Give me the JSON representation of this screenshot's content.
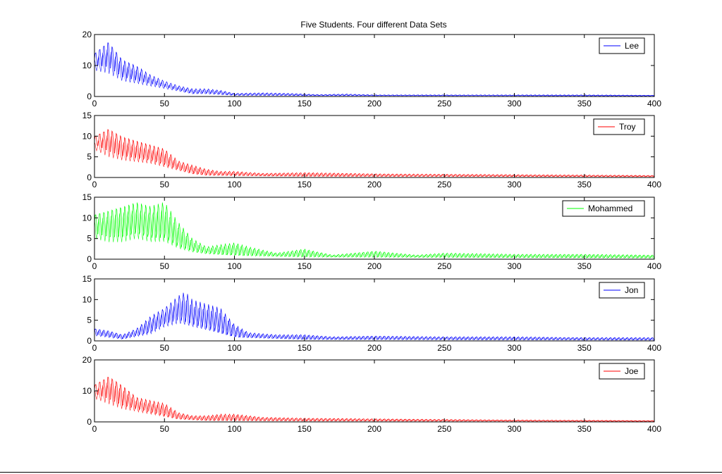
{
  "chart_data": {
    "type": "line",
    "title": "Five Students.  Four different Data Sets",
    "grid": false,
    "panels": [
      {
        "name": "Lee",
        "color": "#0000ff",
        "xlim": [
          0,
          400
        ],
        "ylim": [
          0,
          20
        ],
        "xticks": [
          0,
          50,
          100,
          150,
          200,
          250,
          300,
          350,
          400
        ],
        "yticks": [
          0,
          10,
          20
        ],
        "legend": "top-right",
        "envelope": [
          [
            0,
            14
          ],
          [
            10,
            18
          ],
          [
            20,
            12
          ],
          [
            30,
            10
          ],
          [
            40,
            7
          ],
          [
            50,
            5
          ],
          [
            60,
            3.5
          ],
          [
            70,
            2.5
          ],
          [
            80,
            2.5
          ],
          [
            90,
            2
          ],
          [
            100,
            1
          ],
          [
            120,
            1.2
          ],
          [
            140,
            1
          ],
          [
            160,
            0.6
          ],
          [
            180,
            0.8
          ],
          [
            200,
            0.5
          ],
          [
            250,
            0.5
          ],
          [
            300,
            0.5
          ],
          [
            350,
            0.5
          ],
          [
            400,
            0.4
          ]
        ],
        "baseline": [
          [
            0,
            10
          ],
          [
            10,
            9
          ],
          [
            20,
            6
          ],
          [
            30,
            5
          ],
          [
            40,
            4
          ],
          [
            50,
            3
          ],
          [
            60,
            2
          ],
          [
            70,
            1
          ],
          [
            80,
            1
          ],
          [
            100,
            0.4
          ],
          [
            150,
            0.3
          ],
          [
            400,
            0.2
          ]
        ]
      },
      {
        "name": "Troy",
        "color": "#ff0000",
        "xlim": [
          0,
          400
        ],
        "ylim": [
          0,
          15
        ],
        "xticks": [
          0,
          50,
          100,
          150,
          200,
          250,
          300,
          350,
          400
        ],
        "yticks": [
          0,
          5,
          10,
          15
        ],
        "legend": "top-right",
        "envelope": [
          [
            0,
            10
          ],
          [
            10,
            12
          ],
          [
            20,
            10
          ],
          [
            30,
            9
          ],
          [
            40,
            8
          ],
          [
            50,
            7
          ],
          [
            60,
            4
          ],
          [
            70,
            3
          ],
          [
            80,
            2
          ],
          [
            90,
            1.5
          ],
          [
            100,
            1.5
          ],
          [
            120,
            1
          ],
          [
            150,
            1.2
          ],
          [
            200,
            0.9
          ],
          [
            250,
            0.8
          ],
          [
            300,
            0.7
          ],
          [
            350,
            0.6
          ],
          [
            400,
            0.5
          ]
        ],
        "baseline": [
          [
            0,
            8
          ],
          [
            10,
            6
          ],
          [
            20,
            5
          ],
          [
            30,
            4.5
          ],
          [
            40,
            4
          ],
          [
            50,
            3
          ],
          [
            60,
            2
          ],
          [
            70,
            1
          ],
          [
            80,
            0.6
          ],
          [
            100,
            0.5
          ],
          [
            150,
            0.3
          ],
          [
            400,
            0.2
          ]
        ]
      },
      {
        "name": "Mohammed",
        "color": "#00ff00",
        "xlim": [
          0,
          400
        ],
        "ylim": [
          0,
          15
        ],
        "xticks": [
          0,
          50,
          100,
          150,
          200,
          250,
          300,
          350,
          400
        ],
        "yticks": [
          0,
          5,
          10,
          15
        ],
        "legend": "top-right",
        "envelope": [
          [
            0,
            11
          ],
          [
            10,
            12
          ],
          [
            20,
            13
          ],
          [
            30,
            14
          ],
          [
            40,
            13
          ],
          [
            50,
            14
          ],
          [
            60,
            9
          ],
          [
            70,
            5
          ],
          [
            80,
            3
          ],
          [
            90,
            3.5
          ],
          [
            100,
            4
          ],
          [
            110,
            3
          ],
          [
            130,
            1.5
          ],
          [
            150,
            2.5
          ],
          [
            170,
            1
          ],
          [
            200,
            2
          ],
          [
            230,
            1
          ],
          [
            250,
            1.5
          ],
          [
            300,
            1.2
          ],
          [
            350,
            1.2
          ],
          [
            400,
            1
          ]
        ],
        "baseline": [
          [
            0,
            6
          ],
          [
            10,
            5
          ],
          [
            20,
            5
          ],
          [
            30,
            6
          ],
          [
            40,
            5
          ],
          [
            50,
            5
          ],
          [
            60,
            3
          ],
          [
            70,
            2
          ],
          [
            80,
            1.5
          ],
          [
            100,
            1
          ],
          [
            150,
            0.6
          ],
          [
            400,
            0.3
          ]
        ]
      },
      {
        "name": "Jon",
        "color": "#0000ff",
        "xlim": [
          0,
          400
        ],
        "ylim": [
          0,
          15
        ],
        "xticks": [
          0,
          50,
          100,
          150,
          200,
          250,
          300,
          350,
          400
        ],
        "yticks": [
          0,
          5,
          10,
          15
        ],
        "legend": "top-right",
        "envelope": [
          [
            0,
            3
          ],
          [
            10,
            2.5
          ],
          [
            20,
            1.5
          ],
          [
            30,
            3
          ],
          [
            40,
            6
          ],
          [
            50,
            8
          ],
          [
            60,
            11
          ],
          [
            65,
            12
          ],
          [
            70,
            10
          ],
          [
            80,
            9
          ],
          [
            90,
            8
          ],
          [
            100,
            4
          ],
          [
            110,
            2
          ],
          [
            130,
            1.5
          ],
          [
            150,
            1.5
          ],
          [
            170,
            1
          ],
          [
            200,
            1.2
          ],
          [
            250,
            1
          ],
          [
            300,
            1
          ],
          [
            350,
            0.8
          ],
          [
            400,
            0.8
          ]
        ],
        "baseline": [
          [
            0,
            1.5
          ],
          [
            20,
            0.5
          ],
          [
            40,
            2
          ],
          [
            50,
            4
          ],
          [
            60,
            5
          ],
          [
            70,
            4
          ],
          [
            80,
            3
          ],
          [
            90,
            2
          ],
          [
            100,
            1
          ],
          [
            150,
            0.4
          ],
          [
            400,
            0.2
          ]
        ]
      },
      {
        "name": "Joe",
        "color": "#ff0000",
        "xlim": [
          0,
          400
        ],
        "ylim": [
          0,
          20
        ],
        "xticks": [
          0,
          50,
          100,
          150,
          200,
          250,
          300,
          350,
          400
        ],
        "yticks": [
          0,
          10,
          20
        ],
        "legend": "top-right",
        "envelope": [
          [
            0,
            12
          ],
          [
            10,
            15
          ],
          [
            20,
            12
          ],
          [
            30,
            8
          ],
          [
            40,
            7
          ],
          [
            50,
            6
          ],
          [
            60,
            3
          ],
          [
            70,
            2
          ],
          [
            80,
            2
          ],
          [
            90,
            2.5
          ],
          [
            100,
            2.5
          ],
          [
            120,
            1.5
          ],
          [
            150,
            1.2
          ],
          [
            200,
            1
          ],
          [
            250,
            0.8
          ],
          [
            300,
            0.6
          ],
          [
            350,
            0.5
          ],
          [
            400,
            0.4
          ]
        ],
        "baseline": [
          [
            0,
            9
          ],
          [
            10,
            7
          ],
          [
            20,
            5
          ],
          [
            30,
            4
          ],
          [
            40,
            3
          ],
          [
            50,
            2
          ],
          [
            60,
            1
          ],
          [
            80,
            0.5
          ],
          [
            150,
            0.3
          ],
          [
            400,
            0.2
          ]
        ]
      }
    ]
  }
}
